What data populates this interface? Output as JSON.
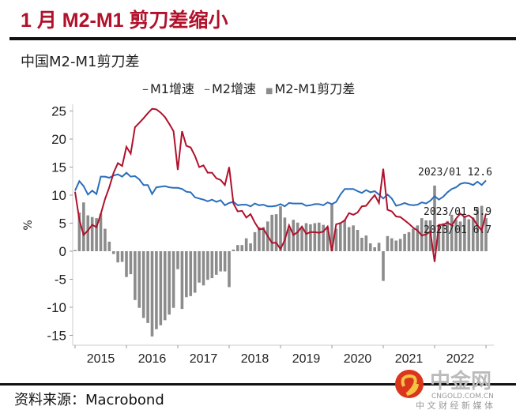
{
  "title": "1 月 M2-M1 剪刀差缩小",
  "source": "资料来源：Macrobond",
  "watermark": {
    "brand": "中金网",
    "domain": "CNGOLD.COM.CN",
    "tagline": "中 文 财 经 新 媒 体"
  },
  "chart_data": {
    "type": "bar+line",
    "title": "中国M2-M1剪刀差",
    "ylabel": "%",
    "ylim": [
      -17,
      27
    ],
    "yticks": [
      25,
      20,
      15,
      10,
      5,
      0,
      -5,
      -10,
      -15
    ],
    "xticks": [
      "2015",
      "2016",
      "2017",
      "2018",
      "2019",
      "2020",
      "2021",
      "2022"
    ],
    "x_start": "2015-01",
    "x_end": "2023-01",
    "frequency": "monthly",
    "colors": {
      "M1": "#b0112b",
      "M2": "#2a6ebb",
      "spread": "#8c8c8c"
    },
    "series": [
      {
        "name": "M1增速",
        "type": "line",
        "values": [
          10.6,
          5.6,
          2.9,
          3.7,
          4.7,
          4.3,
          6.6,
          9.3,
          11.4,
          14.0,
          15.7,
          15.2,
          18.6,
          17.4,
          22.1,
          22.9,
          23.7,
          24.6,
          25.4,
          25.3,
          24.7,
          23.9,
          22.7,
          21.4,
          14.5,
          21.4,
          18.8,
          18.5,
          17.0,
          15.0,
          15.3,
          14.0,
          14.0,
          13.0,
          12.7,
          11.8,
          15.0,
          8.5,
          7.1,
          7.2,
          6.0,
          6.6,
          5.1,
          3.9,
          4.0,
          2.7,
          1.5,
          1.5,
          0.4,
          2.0,
          4.6,
          2.9,
          3.4,
          4.4,
          3.1,
          3.4,
          3.4,
          3.3,
          3.5,
          4.4,
          0.0,
          4.8,
          5.0,
          5.5,
          6.8,
          6.5,
          6.9,
          8.0,
          8.1,
          9.1,
          10.0,
          8.6,
          14.7,
          7.4,
          7.1,
          6.2,
          6.1,
          5.5,
          4.9,
          4.2,
          3.7,
          2.8,
          3.0,
          3.5,
          -1.9,
          4.7,
          4.7,
          5.1,
          4.6,
          5.8,
          6.7,
          6.1,
          6.4,
          5.8,
          4.6,
          3.7,
          6.7
        ]
      },
      {
        "name": "M2增速",
        "type": "line",
        "values": [
          10.8,
          12.5,
          11.6,
          10.1,
          10.8,
          10.2,
          13.3,
          13.3,
          13.1,
          13.5,
          13.7,
          13.3,
          14.0,
          13.3,
          13.4,
          12.8,
          11.8,
          11.8,
          10.2,
          11.4,
          11.5,
          11.6,
          11.4,
          11.3,
          11.3,
          11.1,
          10.6,
          10.5,
          9.6,
          9.4,
          9.2,
          8.9,
          9.2,
          8.8,
          9.1,
          8.2,
          8.6,
          8.8,
          8.2,
          8.3,
          8.3,
          8.0,
          8.5,
          8.2,
          8.3,
          8.0,
          8.0,
          8.1,
          8.4,
          8.0,
          8.6,
          8.5,
          8.5,
          8.5,
          8.1,
          8.2,
          8.4,
          8.4,
          8.2,
          8.7,
          8.4,
          8.8,
          10.1,
          11.1,
          11.1,
          11.1,
          10.7,
          10.4,
          10.9,
          10.5,
          10.7,
          10.1,
          9.4,
          10.1,
          9.4,
          8.1,
          8.3,
          8.6,
          8.3,
          8.2,
          8.3,
          8.7,
          8.5,
          9.0,
          9.8,
          9.2,
          9.7,
          10.5,
          11.1,
          11.4,
          12.0,
          12.2,
          12.1,
          11.8,
          12.4,
          11.8,
          12.6
        ]
      },
      {
        "name": "M2-M1剪刀差",
        "type": "bar",
        "derived": "M2增速 - M1增速"
      }
    ],
    "annotations": [
      "2023/01  12.6",
      "2023/01  5.9",
      "2023/01  6.7"
    ]
  }
}
